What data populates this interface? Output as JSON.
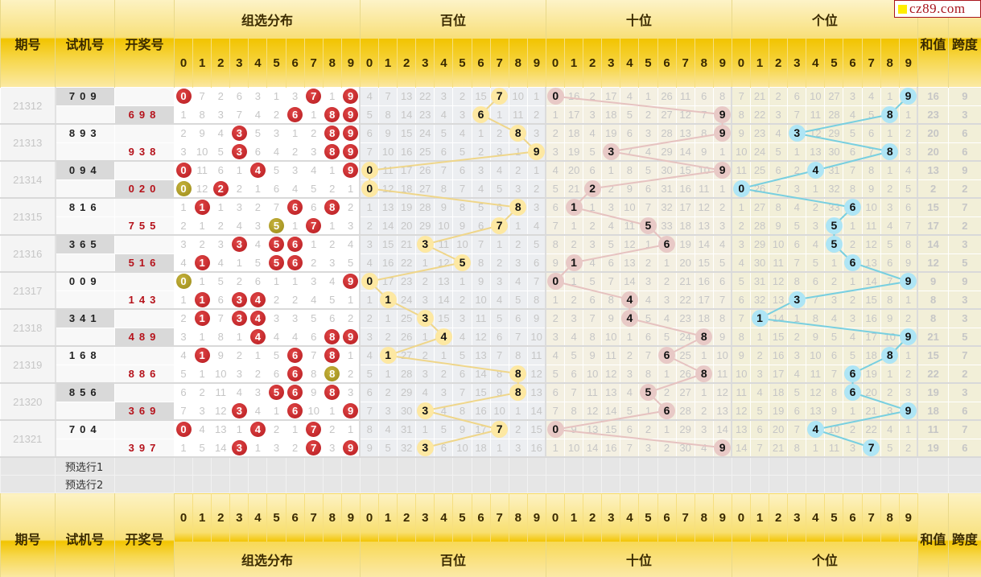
{
  "logo": {
    "text": "cz89.com"
  },
  "header": {
    "period": "期号",
    "test": "试机号",
    "draw": "开奖号",
    "sections": [
      "组选分布",
      "百位",
      "十位",
      "个位"
    ],
    "sum": "和值",
    "span": "跨度",
    "digits": [
      "0",
      "1",
      "2",
      "3",
      "4",
      "5",
      "6",
      "7",
      "8",
      "9"
    ]
  },
  "rows": [
    {
      "period": "21312",
      "test": "709",
      "draw": "698",
      "lines": [
        {
          "group": [
            0,
            7,
            2,
            6,
            3,
            1,
            3,
            7,
            1,
            9
          ],
          "bai": [
            4,
            7,
            13,
            22,
            3,
            2,
            15,
            7,
            10,
            1
          ],
          "shi": [
            0,
            16,
            2,
            17,
            4,
            1,
            26,
            11,
            6,
            8
          ],
          "ge": [
            7,
            21,
            2,
            6,
            10,
            27,
            3,
            4,
            1,
            9
          ],
          "sum": "16",
          "span": "9"
        },
        {
          "group": [
            1,
            8,
            3,
            7,
            4,
            2,
            6,
            1,
            8,
            9
          ],
          "bai": [
            5,
            8,
            14,
            23,
            4,
            3,
            6,
            1,
            11,
            2
          ],
          "shi": [
            1,
            17,
            3,
            18,
            5,
            2,
            27,
            12,
            7,
            9
          ],
          "ge": [
            8,
            22,
            3,
            7,
            11,
            28,
            4,
            5,
            8,
            1
          ],
          "sum": "23",
          "span": "3"
        }
      ]
    },
    {
      "period": "21313",
      "test": "893",
      "draw": "938",
      "lines": [
        {
          "group": [
            2,
            9,
            4,
            3,
            5,
            3,
            1,
            2,
            8,
            9
          ],
          "bai": [
            6,
            9,
            15,
            24,
            5,
            4,
            1,
            2,
            8,
            3
          ],
          "shi": [
            2,
            18,
            4,
            19,
            6,
            3,
            28,
            13,
            8,
            9
          ],
          "ge": [
            9,
            23,
            4,
            3,
            12,
            29,
            5,
            6,
            1,
            2
          ],
          "sum": "20",
          "span": "6"
        },
        {
          "group": [
            3,
            10,
            5,
            3,
            6,
            4,
            2,
            3,
            8,
            9
          ],
          "bai": [
            7,
            10,
            16,
            25,
            6,
            5,
            2,
            3,
            1,
            9
          ],
          "shi": [
            3,
            19,
            5,
            3,
            7,
            4,
            29,
            14,
            9,
            1
          ],
          "ge": [
            10,
            24,
            5,
            1,
            13,
            30,
            6,
            7,
            8,
            3
          ],
          "sum": "20",
          "span": "6"
        }
      ]
    },
    {
      "period": "21314",
      "test": "094",
      "draw": "020",
      "lines": [
        {
          "group": [
            0,
            11,
            6,
            1,
            4,
            5,
            3,
            4,
            1,
            9
          ],
          "bai": [
            0,
            11,
            17,
            26,
            7,
            6,
            3,
            4,
            2,
            1
          ],
          "shi": [
            4,
            20,
            6,
            1,
            8,
            5,
            30,
            15,
            10,
            9
          ],
          "ge": [
            11,
            25,
            6,
            2,
            4,
            31,
            7,
            8,
            1,
            4
          ],
          "sum": "13",
          "span": "9"
        },
        {
          "group": [
            0,
            12,
            2,
            2,
            1,
            6,
            4,
            5,
            2,
            1
          ],
          "bai": [
            0,
            12,
            18,
            27,
            8,
            7,
            4,
            5,
            3,
            2
          ],
          "shi": [
            5,
            21,
            2,
            2,
            9,
            6,
            31,
            16,
            11,
            1
          ],
          "ge": [
            0,
            26,
            7,
            3,
            1,
            32,
            8,
            9,
            2,
            5
          ],
          "sum": "2",
          "span": "2"
        }
      ]
    },
    {
      "period": "21315",
      "test": "816",
      "draw": "755",
      "lines": [
        {
          "group": [
            1,
            1,
            1,
            3,
            2,
            7,
            6,
            6,
            8,
            2
          ],
          "bai": [
            1,
            13,
            19,
            28,
            9,
            8,
            5,
            6,
            8,
            3
          ],
          "shi": [
            6,
            1,
            1,
            3,
            10,
            7,
            32,
            17,
            12,
            2
          ],
          "ge": [
            1,
            27,
            8,
            4,
            2,
            33,
            6,
            10,
            3,
            6
          ],
          "sum": "15",
          "span": "7"
        },
        {
          "group": [
            2,
            1,
            2,
            4,
            3,
            5,
            1,
            7,
            1,
            3
          ],
          "bai": [
            2,
            14,
            20,
            29,
            10,
            9,
            6,
            7,
            1,
            4
          ],
          "shi": [
            7,
            1,
            2,
            4,
            11,
            5,
            33,
            18,
            13,
            3
          ],
          "ge": [
            2,
            28,
            9,
            5,
            3,
            5,
            1,
            11,
            4,
            7
          ],
          "sum": "17",
          "span": "2"
        }
      ]
    },
    {
      "period": "21316",
      "test": "365",
      "draw": "516",
      "lines": [
        {
          "group": [
            3,
            2,
            3,
            3,
            4,
            5,
            6,
            1,
            2,
            4
          ],
          "bai": [
            3,
            15,
            21,
            3,
            11,
            10,
            7,
            1,
            2,
            5
          ],
          "shi": [
            8,
            2,
            3,
            5,
            12,
            1,
            6,
            19,
            14,
            4
          ],
          "ge": [
            3,
            29,
            10,
            6,
            4,
            5,
            2,
            12,
            5,
            8
          ],
          "sum": "14",
          "span": "3"
        },
        {
          "group": [
            4,
            1,
            4,
            1,
            5,
            5,
            6,
            2,
            3,
            5
          ],
          "bai": [
            4,
            16,
            22,
            1,
            12,
            5,
            8,
            2,
            3,
            6
          ],
          "shi": [
            9,
            1,
            4,
            6,
            13,
            2,
            1,
            20,
            15,
            5
          ],
          "ge": [
            4,
            30,
            11,
            7,
            5,
            1,
            6,
            13,
            6,
            9
          ],
          "sum": "12",
          "span": "5"
        }
      ]
    },
    {
      "period": "21317",
      "test": "009",
      "draw": "143",
      "lines": [
        {
          "group": [
            0,
            1,
            5,
            2,
            6,
            1,
            1,
            3,
            4,
            9
          ],
          "bai": [
            0,
            17,
            23,
            2,
            13,
            1,
            9,
            3,
            4,
            7
          ],
          "shi": [
            0,
            1,
            5,
            7,
            14,
            3,
            2,
            21,
            16,
            6
          ],
          "ge": [
            5,
            31,
            12,
            8,
            6,
            2,
            1,
            14,
            7,
            9
          ],
          "sum": "9",
          "span": "9"
        },
        {
          "group": [
            1,
            1,
            6,
            3,
            4,
            2,
            2,
            4,
            5,
            1
          ],
          "bai": [
            1,
            1,
            24,
            3,
            14,
            2,
            10,
            4,
            5,
            8
          ],
          "shi": [
            1,
            2,
            6,
            8,
            4,
            4,
            3,
            22,
            17,
            7
          ],
          "ge": [
            6,
            32,
            13,
            3,
            7,
            3,
            2,
            15,
            8,
            1
          ],
          "sum": "8",
          "span": "3"
        }
      ]
    },
    {
      "period": "21318",
      "test": "341",
      "draw": "489",
      "lines": [
        {
          "group": [
            2,
            1,
            7,
            3,
            4,
            3,
            3,
            5,
            6,
            2
          ],
          "bai": [
            2,
            1,
            25,
            3,
            15,
            3,
            11,
            5,
            6,
            9
          ],
          "shi": [
            2,
            3,
            7,
            9,
            4,
            5,
            4,
            23,
            18,
            8
          ],
          "ge": [
            7,
            1,
            14,
            1,
            8,
            4,
            3,
            16,
            9,
            2
          ],
          "sum": "8",
          "span": "3"
        },
        {
          "group": [
            3,
            1,
            8,
            1,
            4,
            4,
            4,
            6,
            8,
            9
          ],
          "bai": [
            3,
            2,
            26,
            1,
            4,
            4,
            12,
            6,
            7,
            10
          ],
          "shi": [
            3,
            4,
            8,
            10,
            1,
            6,
            5,
            24,
            8,
            9
          ],
          "ge": [
            8,
            1,
            15,
            2,
            9,
            5,
            4,
            17,
            10,
            9
          ],
          "sum": "21",
          "span": "5"
        }
      ]
    },
    {
      "period": "21319",
      "test": "168",
      "draw": "886",
      "lines": [
        {
          "group": [
            4,
            1,
            9,
            2,
            1,
            5,
            6,
            7,
            8,
            1
          ],
          "bai": [
            4,
            1,
            27,
            2,
            1,
            5,
            13,
            7,
            8,
            11
          ],
          "shi": [
            4,
            5,
            9,
            11,
            2,
            7,
            6,
            25,
            1,
            10
          ],
          "ge": [
            9,
            2,
            16,
            3,
            10,
            6,
            5,
            18,
            8,
            1
          ],
          "sum": "15",
          "span": "7"
        },
        {
          "group": [
            5,
            1,
            10,
            3,
            2,
            6,
            6,
            8,
            8,
            2
          ],
          "bai": [
            5,
            1,
            28,
            3,
            2,
            6,
            14,
            8,
            8,
            12
          ],
          "shi": [
            5,
            6,
            10,
            12,
            3,
            8,
            1,
            26,
            8,
            11
          ],
          "ge": [
            10,
            3,
            17,
            4,
            11,
            7,
            6,
            19,
            1,
            2
          ],
          "sum": "22",
          "span": "2"
        }
      ]
    },
    {
      "period": "21320",
      "test": "856",
      "draw": "369",
      "lines": [
        {
          "group": [
            6,
            2,
            11,
            4,
            3,
            5,
            6,
            9,
            8,
            3
          ],
          "bai": [
            6,
            2,
            29,
            4,
            3,
            7,
            15,
            9,
            8,
            13
          ],
          "shi": [
            6,
            7,
            11,
            13,
            4,
            5,
            2,
            27,
            1,
            12
          ],
          "ge": [
            11,
            4,
            18,
            5,
            12,
            8,
            6,
            20,
            2,
            3
          ],
          "sum": "19",
          "span": "3"
        },
        {
          "group": [
            7,
            3,
            12,
            3,
            4,
            1,
            6,
            10,
            1,
            9
          ],
          "bai": [
            7,
            3,
            30,
            3,
            4,
            8,
            16,
            10,
            1,
            14
          ],
          "shi": [
            7,
            8,
            12,
            14,
            5,
            1,
            6,
            28,
            2,
            13
          ],
          "ge": [
            12,
            5,
            19,
            6,
            13,
            9,
            1,
            21,
            3,
            9
          ],
          "sum": "18",
          "span": "6"
        }
      ]
    },
    {
      "period": "21321",
      "test": "704",
      "draw": "397",
      "lines": [
        {
          "group": [
            0,
            4,
            13,
            1,
            4,
            2,
            1,
            7,
            2,
            1
          ],
          "bai": [
            8,
            4,
            31,
            1,
            5,
            9,
            17,
            7,
            2,
            15
          ],
          "shi": [
            0,
            9,
            13,
            15,
            6,
            2,
            1,
            29,
            3,
            14
          ],
          "ge": [
            13,
            6,
            20,
            7,
            4,
            10,
            2,
            22,
            4,
            1
          ],
          "sum": "11",
          "span": "7"
        },
        {
          "group": [
            1,
            5,
            14,
            3,
            1,
            3,
            2,
            7,
            3,
            9
          ],
          "bai": [
            9,
            5,
            32,
            3,
            6,
            10,
            18,
            1,
            3,
            16
          ],
          "shi": [
            1,
            10,
            14,
            16,
            7,
            3,
            2,
            30,
            4,
            9
          ],
          "ge": [
            14,
            7,
            21,
            8,
            1,
            11,
            3,
            7,
            5,
            2
          ],
          "sum": "19",
          "span": "6"
        }
      ]
    }
  ],
  "preselect": [
    "预选行1",
    "预选行2"
  ],
  "colors": {
    "group_hit": "#c41e24",
    "group_repeat_hit": "#a8982a",
    "bai_ball": "#fde8a2",
    "shi_ball": "#e8c9c6",
    "ge_ball": "#aee5f5",
    "bai_line": "#efd68a",
    "shi_line": "#e6c2c0",
    "ge_line": "#78cfe0",
    "header_gold": "#f2c400"
  }
}
